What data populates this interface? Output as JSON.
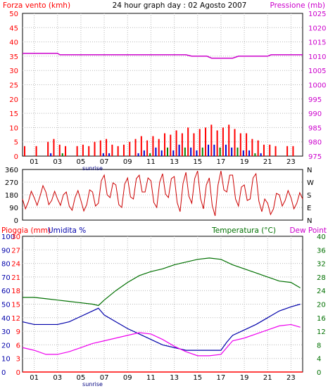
{
  "header": {
    "title": "24 hour graph day : 02 Agosto 2007",
    "left_label": "Forza vento (kmh)",
    "right_label": "Pressione (mb)"
  },
  "panel2": {
    "direction_letters": [
      "N",
      "W",
      "S",
      "E",
      "N"
    ]
  },
  "panel3": {
    "label_rain": "Pioggia (mm)",
    "label_humidity": "Umidita %",
    "label_temperature": "Temperatura (°C)",
    "label_dewpoint": "Dew Point"
  },
  "x_axis": {
    "ticks": [
      "01",
      "03",
      "05",
      "07",
      "09",
      "11",
      "13",
      "15",
      "17",
      "19",
      "21",
      "23"
    ],
    "sunrise_label": "sunrise"
  },
  "colors": {
    "wind": "#ff0000",
    "gust_alt": "#0000cc",
    "gust_green": "#008000",
    "pressure": "#cc00cc",
    "direction": "#cc0000",
    "humidity": "#0000aa",
    "temperature": "#007000",
    "dewpoint": "#ee00ee",
    "rain": "#ff0000",
    "grid": "#b8b8b8"
  },
  "chart_data": [
    {
      "type": "bar",
      "title": "24 hour graph day : 02 Agosto 2007",
      "ylabel": "Forza vento (kmh)",
      "ylim": [
        0,
        50
      ],
      "yticks": [
        0,
        5,
        10,
        15,
        20,
        25,
        30,
        35,
        40,
        45,
        50
      ],
      "x_hours": [
        0,
        0.5,
        1,
        1.5,
        2,
        2.5,
        3,
        3.5,
        4,
        4.5,
        5,
        5.5,
        6,
        6.5,
        7,
        7.5,
        8,
        8.5,
        9,
        9.5,
        10,
        10.5,
        11,
        11.5,
        12,
        12.5,
        13,
        13.5,
        14,
        14.5,
        15,
        15.5,
        16,
        16.5,
        17,
        17.5,
        18,
        18.5,
        19,
        19.5,
        20,
        20.5,
        21,
        21.5,
        22,
        22.5,
        23,
        23.5
      ],
      "series": [
        {
          "values": [
            3.5,
            0,
            3.5,
            0,
            5,
            6,
            4,
            3.5,
            0,
            3.5,
            4,
            3.5,
            5,
            5.5,
            6,
            4,
            3.5,
            4,
            5,
            6,
            7,
            5.5,
            7,
            6,
            8,
            7.5,
            9,
            8,
            10,
            8,
            9.5,
            10,
            11,
            9,
            10,
            11,
            9.5,
            8,
            8,
            6,
            5.5,
            4,
            4,
            3.5,
            0,
            3.5,
            3.5,
            0
          ]
        },
        {
          "values": [
            0,
            0,
            0,
            0,
            1,
            0,
            1,
            0,
            0,
            0,
            0,
            0,
            0,
            1,
            1,
            0,
            0,
            0,
            0,
            1,
            2,
            1,
            3,
            2,
            3,
            2,
            4,
            3,
            3,
            2,
            3,
            4,
            4,
            3,
            4,
            3,
            3,
            2,
            2,
            1,
            1,
            0,
            0,
            0,
            0,
            0,
            0,
            0
          ]
        }
      ]
    },
    {
      "type": "line",
      "ylabel": "Pressione (mb)",
      "ylim": [
        975,
        1025
      ],
      "yticks": [
        975,
        980,
        985,
        990,
        995,
        1000,
        1005,
        1010,
        1015,
        1020,
        1025
      ],
      "series": [
        {
          "x": [
            0,
            3,
            3.2,
            14,
            14.5,
            15.8,
            16.2,
            18,
            18.5,
            21,
            21.3,
            24
          ],
          "values": [
            1011,
            1011,
            1010.5,
            1010.5,
            1010,
            1010,
            1009.3,
            1009.3,
            1010,
            1010,
            1010.5,
            1010.5
          ]
        }
      ]
    },
    {
      "type": "line",
      "ylim": [
        0,
        360
      ],
      "yticks": [
        0,
        90,
        180,
        270,
        360
      ],
      "series": [
        {
          "x": [
            0,
            0.5,
            1,
            1.5,
            2,
            2.5,
            3,
            3.5,
            4,
            4.5,
            5,
            5.5,
            6,
            6.5,
            7,
            7.5,
            8,
            8.5,
            9,
            9.5,
            10,
            10.5,
            11,
            11.5,
            12,
            12.5,
            13,
            13.5,
            14,
            14.5,
            15,
            15.5,
            16,
            16.5,
            17,
            17.5,
            18,
            18.5,
            19,
            19.5,
            20,
            20.5,
            21,
            21.5,
            22,
            22.5,
            23,
            23.5,
            24
          ],
          "values": [
            150,
            130,
            160,
            170,
            200,
            140,
            150,
            180,
            100,
            160,
            140,
            110,
            200,
            120,
            320,
            160,
            250,
            90,
            300,
            150,
            320,
            200,
            280,
            90,
            330,
            160,
            310,
            60,
            340,
            120,
            350,
            80,
            300,
            30,
            350,
            200,
            320,
            100,
            250,
            150,
            330,
            60,
            120,
            80,
            180,
            140,
            160,
            120,
            150
          ]
        }
      ]
    },
    {
      "type": "line",
      "ylim": [
        0,
        100
      ],
      "yticks": [
        0,
        10,
        20,
        30,
        40,
        50,
        60,
        70,
        80,
        90,
        100
      ],
      "series": [
        {
          "name": "Umidita %",
          "x": [
            0,
            1,
            2,
            3,
            4,
            5,
            6,
            6.5,
            7,
            8,
            9,
            10,
            11,
            12,
            13,
            14,
            15,
            16,
            17,
            17.5,
            18,
            19,
            20,
            21,
            22,
            23,
            23.8
          ],
          "values": [
            37,
            35,
            35,
            35,
            37,
            41,
            45,
            47,
            42,
            37,
            32,
            28,
            24,
            20,
            18,
            16,
            16,
            16,
            16,
            22,
            27,
            31,
            35,
            40,
            45,
            48,
            50
          ]
        },
        {
          "name": "Temperatura (°C)",
          "x": [
            0,
            1,
            2,
            3,
            4,
            5,
            6,
            6.5,
            7,
            8,
            9,
            10,
            11,
            12,
            13,
            14,
            15,
            16,
            17,
            18,
            19,
            20,
            21,
            22,
            23,
            23.8
          ],
          "values": [
            55,
            55,
            54,
            53,
            52,
            51,
            50,
            49,
            53,
            60,
            66,
            71,
            74,
            76,
            79,
            81,
            83,
            84,
            83,
            79,
            76,
            73,
            70,
            67,
            66,
            62
          ]
        },
        {
          "name": "Dew Point",
          "x": [
            0,
            1,
            2,
            3,
            4,
            5,
            6,
            7,
            8,
            9,
            10,
            11,
            12,
            13,
            14,
            15,
            16,
            17,
            17.5,
            18,
            19,
            20,
            21,
            22,
            23,
            23.8
          ],
          "values": [
            18,
            16,
            13,
            13,
            15,
            18,
            21,
            23,
            25,
            27,
            29,
            28,
            24,
            19,
            15,
            12,
            12,
            13,
            18,
            23,
            25,
            28,
            31,
            34,
            35,
            33
          ]
        },
        {
          "name": "Pioggia (mm)",
          "x": [
            0,
            24
          ],
          "values": [
            0,
            0
          ]
        }
      ]
    }
  ],
  "axis_scales": {
    "rain_ticks": [
      0,
      3,
      6,
      9,
      12,
      15,
      18,
      21,
      24,
      27,
      30
    ],
    "temperature_ticks": [
      0,
      4,
      8,
      12,
      16,
      20,
      24,
      28,
      32,
      36,
      40
    ]
  }
}
